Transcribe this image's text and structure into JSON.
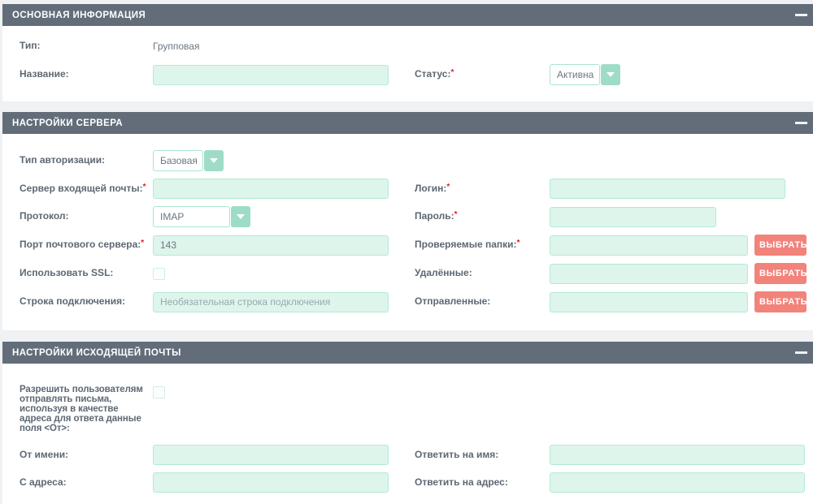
{
  "colors": {
    "header_bg": "#626d79",
    "input_bg": "#def5ec",
    "input_border": "#b4e9d6",
    "select_button_bg": "#9fdcc8",
    "action_button_bg": "#f2837b",
    "label_color": "#5d6873",
    "required_color": "#e02020"
  },
  "section_main": {
    "title": "ОСНОВНАЯ ИНФОРМАЦИЯ",
    "fields": {
      "type": {
        "label": "Тип:",
        "value": "Групповая"
      },
      "name": {
        "label": "Название:",
        "value": ""
      },
      "status": {
        "label": "Статус:",
        "required": "*",
        "value": "Активна"
      }
    }
  },
  "section_server": {
    "title": "НАСТРОЙКИ СЕРВЕРА",
    "fields": {
      "auth_type": {
        "label": "Тип авторизации:",
        "value": "Базовая"
      },
      "incoming_server": {
        "label": "Сервер входящей почты:",
        "required": "*",
        "value": ""
      },
      "login": {
        "label": "Логин:",
        "required": "*",
        "value": ""
      },
      "protocol": {
        "label": "Протокол:",
        "value": "IMAP"
      },
      "password": {
        "label": "Пароль:",
        "required": "*",
        "value": ""
      },
      "port": {
        "label": "Порт почтового сервера:",
        "required": "*",
        "value": "143"
      },
      "checked_folders": {
        "label": "Проверяемые папки:",
        "required": "*",
        "value": "",
        "button": "ВЫБРАТЬ"
      },
      "use_ssl": {
        "label": "Использовать SSL:",
        "checked": false
      },
      "deleted": {
        "label": "Удалённые:",
        "value": "",
        "button": "ВЫБРАТЬ"
      },
      "connection_string": {
        "label": "Строка подключения:",
        "placeholder": "Необязательная строка подключения",
        "value": ""
      },
      "sent": {
        "label": "Отправленные:",
        "value": "",
        "button": "ВЫБРАТЬ"
      }
    }
  },
  "section_outgoing": {
    "title": "НАСТРОЙКИ ИСХОДЯЩЕЙ ПОЧТЫ",
    "fields": {
      "allow_users_reply_from": {
        "label": "Разрешить пользователям отправлять письма, используя в качестве адреса для ответа данные поля <От>:",
        "checked": false
      },
      "from_name": {
        "label": "От имени:",
        "value": ""
      },
      "reply_to_name": {
        "label": "Ответить на имя:",
        "value": ""
      },
      "from_address": {
        "label": "С адреса:",
        "value": ""
      },
      "reply_to_address": {
        "label": "Ответить на адрес:",
        "value": ""
      }
    }
  }
}
